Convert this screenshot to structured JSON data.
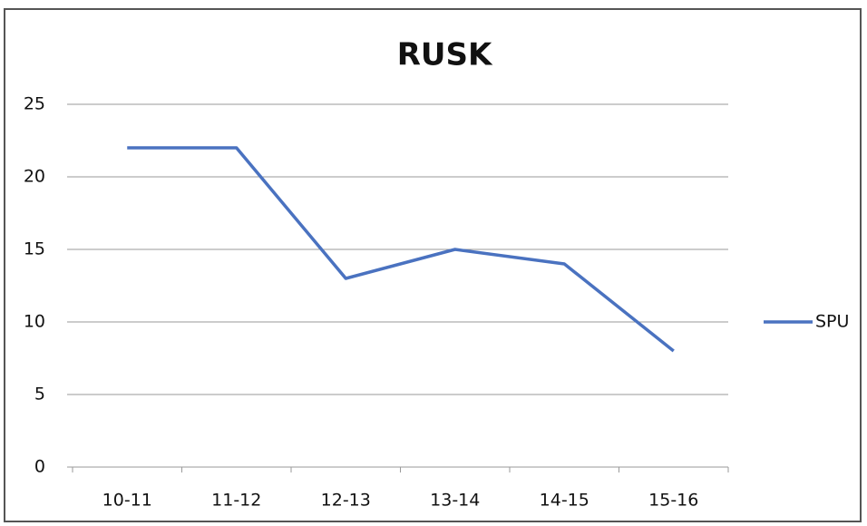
{
  "chart_data": {
    "type": "line",
    "title": "RUSK",
    "categories": [
      "10-11",
      "11-12",
      "12-13",
      "13-14",
      "14-15",
      "15-16"
    ],
    "series": [
      {
        "name": "SPU",
        "color": "#4a72c0",
        "values": [
          22,
          22,
          13,
          15,
          14,
          8
        ]
      }
    ],
    "ylim": [
      0,
      25
    ],
    "yticks": [
      0,
      5,
      10,
      15,
      20,
      25
    ],
    "grid": true,
    "legend": "right"
  }
}
